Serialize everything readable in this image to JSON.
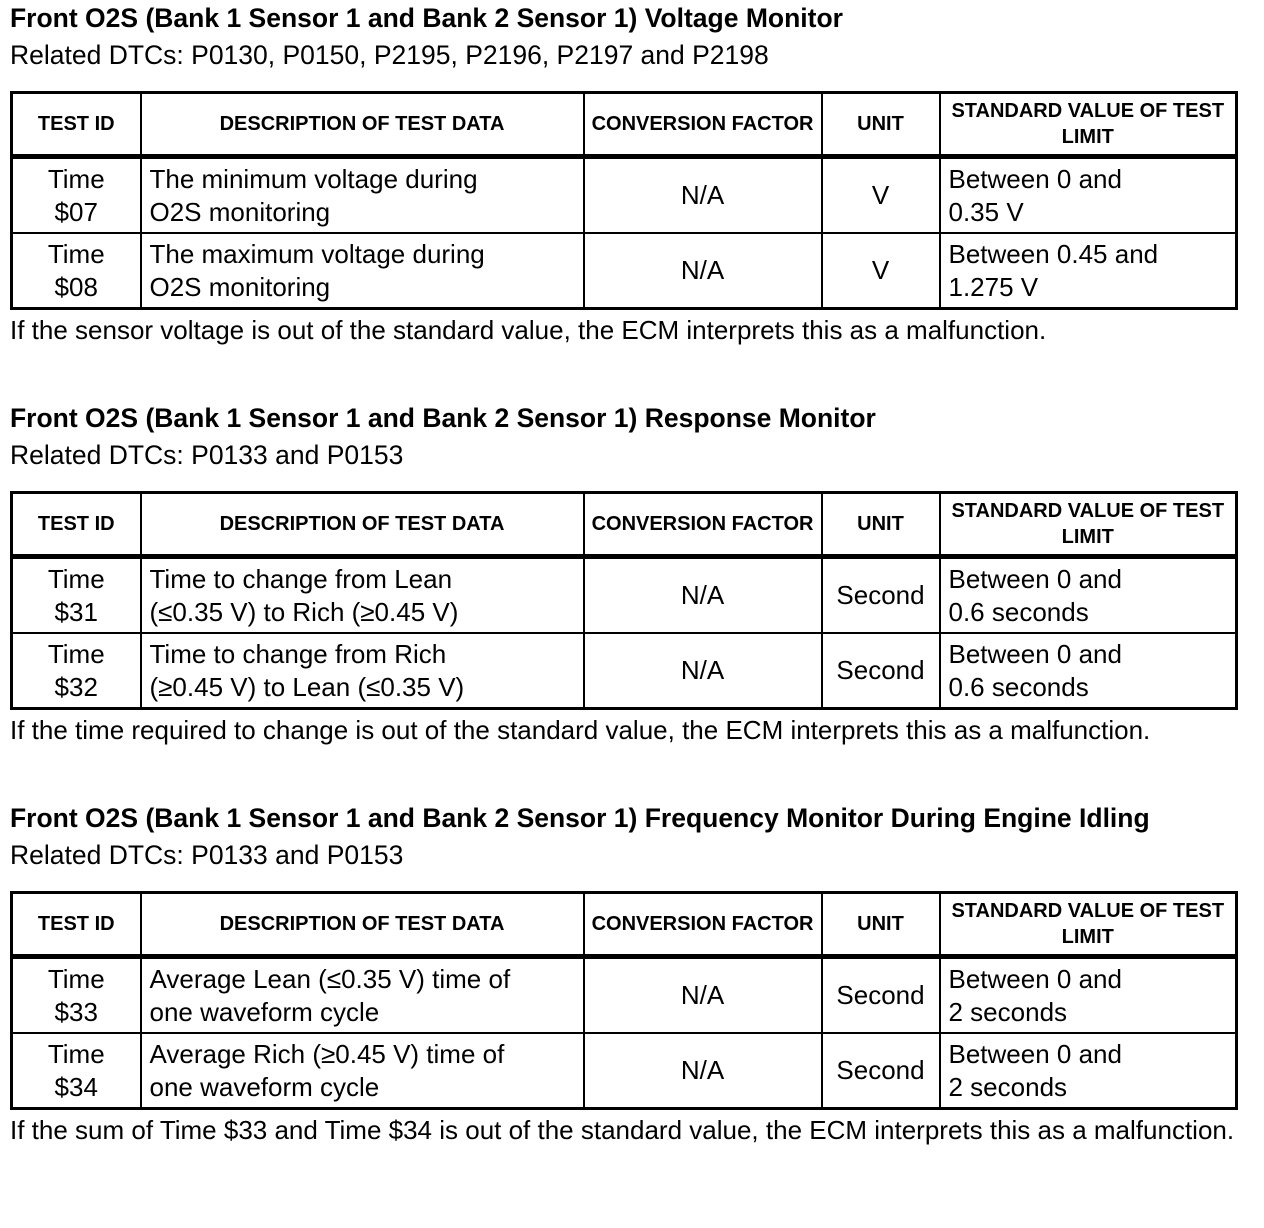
{
  "headers": {
    "test_id": "TEST ID",
    "description": "DESCRIPTION OF TEST DATA",
    "conversion": "CONVERSION FACTOR",
    "unit": "UNIT",
    "standard": "STANDARD VALUE OF TEST LIMIT"
  },
  "sections": [
    {
      "title": "Front O2S (Bank 1 Sensor 1 and Bank 2 Sensor 1) Voltage Monitor",
      "related": "Related DTCs: P0130, P0150, P2195, P2196, P2197 and P2198",
      "rows": [
        {
          "id1": "Time",
          "id2": "$07",
          "desc1": "The minimum voltage during",
          "desc2": "O2S monitoring",
          "conv": "N/A",
          "unit": "V",
          "std1": "Between 0 and",
          "std2": "0.35 V"
        },
        {
          "id1": "Time",
          "id2": "$08",
          "desc1": "The maximum voltage during",
          "desc2": "O2S monitoring",
          "conv": "N/A",
          "unit": "V",
          "std1": "Between 0.45 and",
          "std2": "1.275 V"
        }
      ],
      "note": "If the sensor voltage is out of the standard value, the ECM interprets this as a malfunction."
    },
    {
      "title": "Front O2S (Bank 1 Sensor 1 and Bank 2 Sensor 1) Response Monitor",
      "related": "Related DTCs: P0133 and P0153",
      "rows": [
        {
          "id1": "Time",
          "id2": "$31",
          "desc1": "Time to change from Lean",
          "desc2": "(≤0.35 V) to Rich (≥0.45 V)",
          "conv": "N/A",
          "unit": "Second",
          "std1": "Between 0 and",
          "std2": "0.6 seconds"
        },
        {
          "id1": "Time",
          "id2": "$32",
          "desc1": "Time to change from Rich",
          "desc2": "(≥0.45 V) to Lean (≤0.35 V)",
          "conv": "N/A",
          "unit": "Second",
          "std1": "Between 0 and",
          "std2": "0.6 seconds"
        }
      ],
      "note": "If the time required to change is out of the standard value, the ECM interprets this as a malfunction."
    },
    {
      "title": "Front O2S (Bank 1 Sensor 1 and Bank 2 Sensor 1) Frequency Monitor During Engine Idling",
      "related": "Related DTCs: P0133 and P0153",
      "rows": [
        {
          "id1": "Time",
          "id2": "$33",
          "desc1": "Average Lean (≤0.35 V) time of",
          "desc2": "one waveform cycle",
          "conv": "N/A",
          "unit": "Second",
          "std1": "Between 0 and",
          "std2": "2 seconds"
        },
        {
          "id1": "Time",
          "id2": "$34",
          "desc1": "Average Rich (≥0.45 V) time of",
          "desc2": "one waveform cycle",
          "conv": "N/A",
          "unit": "Second",
          "std1": "Between 0 and",
          "std2": "2 seconds"
        }
      ],
      "note": "If the sum of Time $33 and Time $34 is out of the standard value, the ECM interprets this as a malfunction."
    }
  ]
}
